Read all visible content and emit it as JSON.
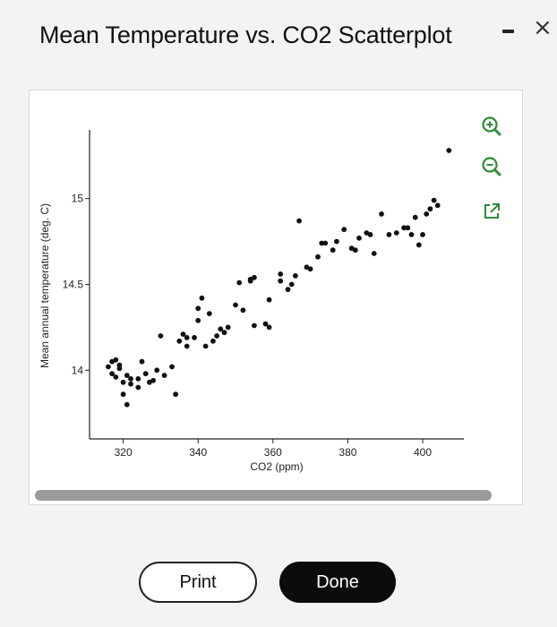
{
  "window": {
    "title": "Mean Temperature vs. CO2 Scatterplot",
    "minimize_label": "",
    "close_label": "×"
  },
  "toolbar": {
    "zoom_in_icon": "zoom-in-icon",
    "zoom_out_icon": "zoom-out-icon",
    "popout_icon": "external-link-icon",
    "accent_color": "#2e8b3a"
  },
  "chart_data": {
    "type": "scatter",
    "title": "",
    "xlabel": "CO2 (ppm)",
    "ylabel": "Mean annual temperature (deg. C)",
    "xlim": [
      311,
      411
    ],
    "ylim": [
      13.6,
      15.4
    ],
    "xticks": [
      320,
      340,
      360,
      380,
      400
    ],
    "xtick_labels": [
      "320",
      "340",
      "360",
      "380",
      "400"
    ],
    "yticks": [
      14,
      14.5,
      15
    ],
    "ytick_labels": [
      "14",
      "14.5",
      "15"
    ],
    "grid": false,
    "marker_color": "#111111",
    "x": [
      316,
      317,
      317,
      318,
      318,
      319,
      319,
      320,
      320,
      321,
      321,
      322,
      322,
      324,
      324,
      325,
      326,
      327,
      328,
      329,
      330,
      331,
      333,
      334,
      335,
      336,
      337,
      337,
      339,
      340,
      340,
      341,
      342,
      343,
      344,
      345,
      346,
      347,
      348,
      350,
      351,
      352,
      354,
      354,
      355,
      355,
      358,
      359,
      359,
      362,
      362,
      364,
      365,
      366,
      367,
      369,
      370,
      372,
      373,
      374,
      376,
      377,
      379,
      381,
      382,
      383,
      385,
      386,
      387,
      389,
      391,
      393,
      395,
      396,
      397,
      398,
      399,
      400,
      401,
      402,
      403,
      404,
      407
    ],
    "y": [
      14.02,
      14.05,
      13.98,
      14.06,
      13.96,
      14.01,
      14.03,
      13.93,
      13.86,
      13.8,
      13.97,
      13.95,
      13.92,
      13.9,
      13.95,
      14.05,
      13.98,
      13.93,
      13.94,
      14.0,
      14.2,
      13.97,
      14.02,
      13.86,
      14.17,
      14.21,
      14.19,
      14.14,
      14.19,
      14.29,
      14.36,
      14.42,
      14.14,
      14.33,
      14.17,
      14.2,
      14.24,
      14.22,
      14.25,
      14.38,
      14.51,
      14.35,
      14.53,
      14.52,
      14.54,
      14.26,
      14.27,
      14.25,
      14.41,
      14.56,
      14.52,
      14.47,
      14.5,
      14.55,
      14.87,
      14.6,
      14.59,
      14.66,
      14.74,
      14.74,
      14.7,
      14.75,
      14.82,
      14.71,
      14.7,
      14.77,
      14.8,
      14.79,
      14.68,
      14.91,
      14.79,
      14.8,
      14.83,
      14.83,
      14.79,
      14.89,
      14.73,
      14.79,
      14.91,
      14.94,
      14.99,
      14.96,
      15.28
    ]
  },
  "buttons": {
    "print_label": "Print",
    "done_label": "Done"
  }
}
